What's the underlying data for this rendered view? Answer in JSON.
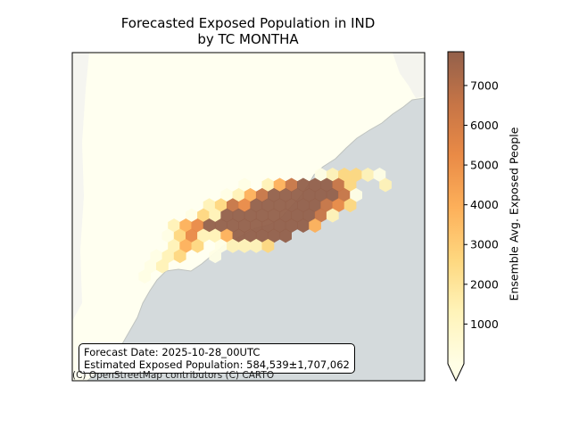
{
  "title": {
    "line1": "Forecasted Exposed Population in IND",
    "line2": "by TC MONTHA"
  },
  "info_box": {
    "forecast_date": "Forecast Date: 2025-10-28_00UTC",
    "estimated_population": "Estimated Exposed Population: 584,539±1,707,062"
  },
  "attribution": "(C) OpenStreetMap contributors (C) CARTO",
  "colorbar": {
    "label": "Ensemble Avg. Exposed People",
    "ticks": [
      "1000",
      "2000",
      "3000",
      "4000",
      "5000",
      "6000",
      "7000"
    ],
    "tick_values": [
      1000,
      2000,
      3000,
      4000,
      5000,
      6000,
      7000
    ],
    "min": 0,
    "max": 7850,
    "extend": "min",
    "colormap": "YlOrBr",
    "colors": [
      "#fffee5",
      "#fff3b8",
      "#fed880",
      "#fdb05a",
      "#e98a46",
      "#c77546",
      "#93604b"
    ]
  },
  "map_colors": {
    "land": "#fffff0",
    "sea": "#d4dadc",
    "frame": "#000000"
  }
}
